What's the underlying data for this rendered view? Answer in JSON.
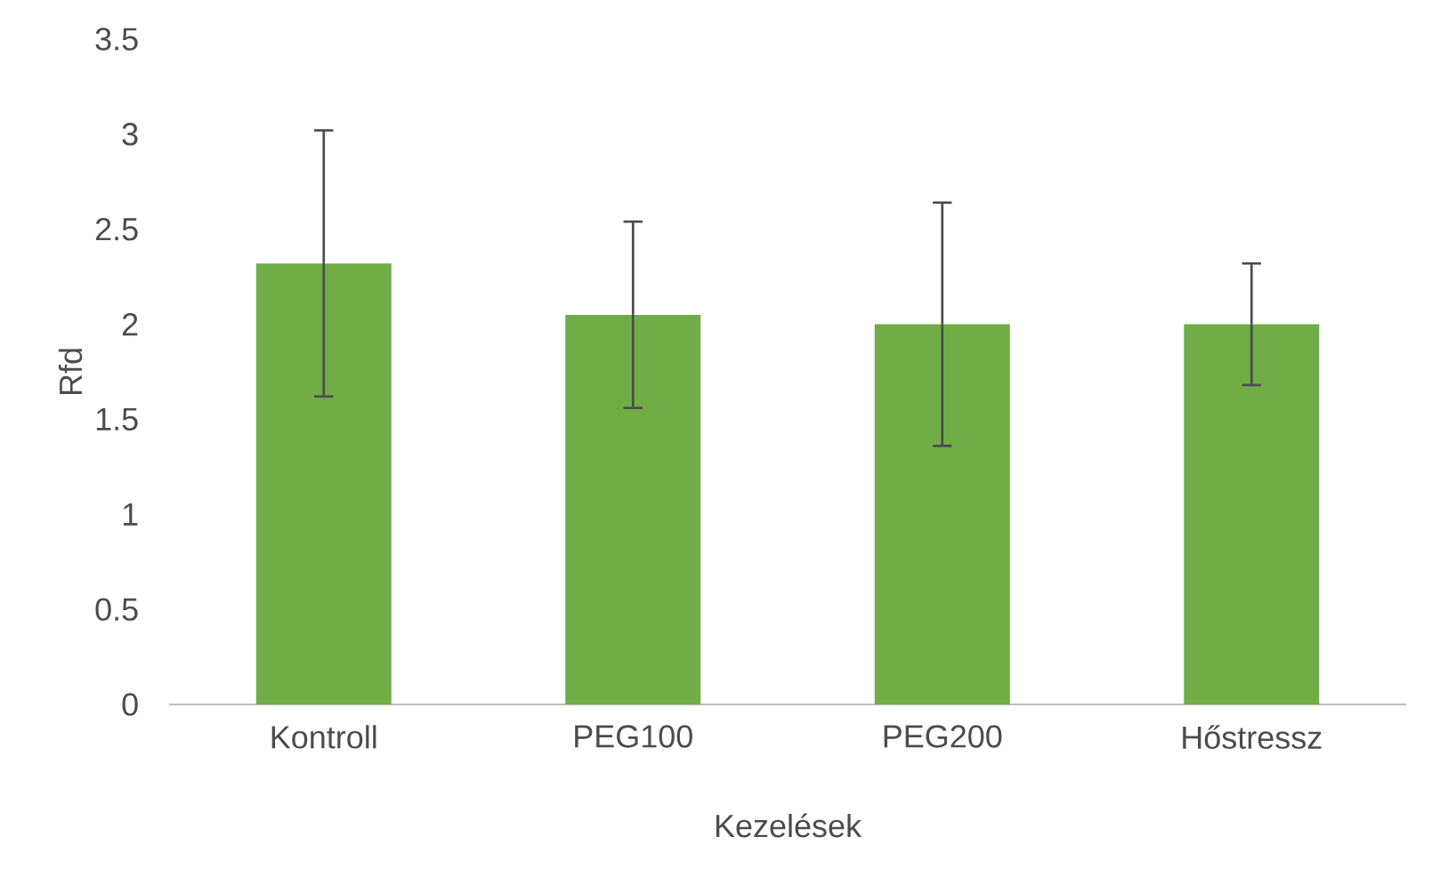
{
  "chart_data": {
    "type": "bar",
    "xlabel": "Kezelések",
    "ylabel": "Rfd",
    "categories": [
      "Kontroll",
      "PEG100",
      "PEG200",
      "Hőstressz"
    ],
    "values": [
      2.32,
      2.05,
      2.0,
      2.0
    ],
    "errors": [
      0.7,
      0.49,
      0.64,
      0.32
    ],
    "color": "#70ad47",
    "ylim": [
      0,
      3.5
    ],
    "yticks": [
      0,
      0.5,
      1,
      1.5,
      2,
      2.5,
      3,
      3.5
    ]
  }
}
